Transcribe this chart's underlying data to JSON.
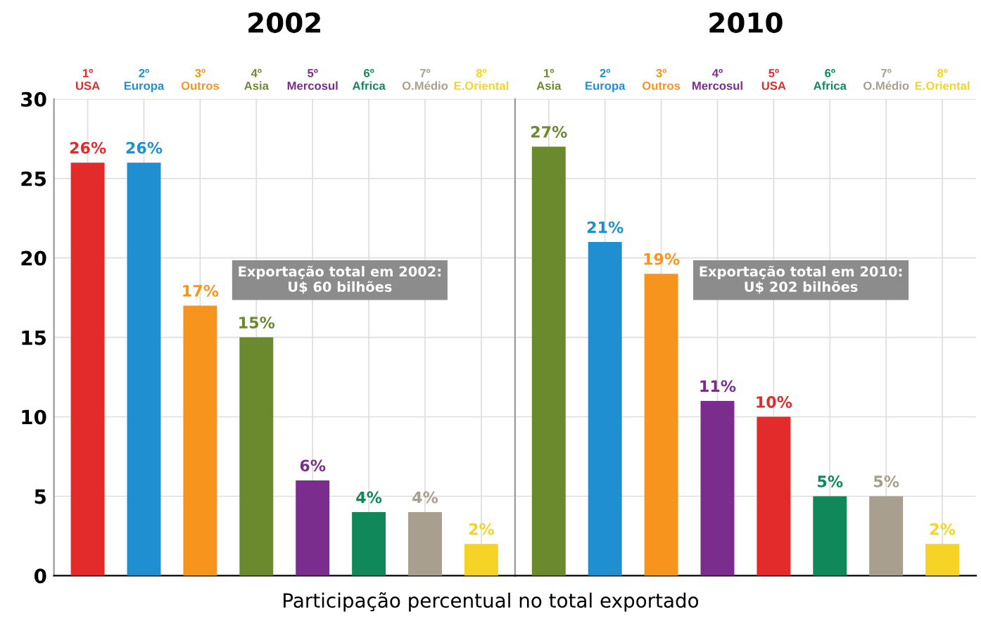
{
  "chart_data": [
    {
      "type": "bar",
      "title": "2002",
      "xlabel": "Participação percentual no total exportado",
      "categories": [
        "1º\nUSA",
        "2º\nEuropa",
        "3º\nOutros",
        "4º\nAsia",
        "5º\nMercosul",
        "6º\nAfrica",
        "7º\nO.Médio",
        "8º\nE.Oriental"
      ],
      "values": [
        26,
        26,
        17,
        15,
        6,
        4,
        4,
        2
      ],
      "value_labels": [
        "26%",
        "26%",
        "17%",
        "15%",
        "6%",
        "4%",
        "4%",
        "2%"
      ],
      "colors": [
        "#e32b2b",
        "#1f8fd1",
        "#f7941d",
        "#6b8a2e",
        "#7b2d8e",
        "#10885a",
        "#a89f8e",
        "#f5d327"
      ],
      "ylim": [
        0,
        30
      ],
      "yticks": [
        0,
        5,
        10,
        15,
        20,
        25,
        30
      ],
      "grid": true,
      "annotations": [
        "Exportação total em 2002:\nU$ 60 bilhões"
      ]
    },
    {
      "type": "bar",
      "title": "2010",
      "categories": [
        "1º\nAsia",
        "2º\nEuropa",
        "3º\nOutros",
        "4º\nMercosul",
        "5º\nUSA",
        "6º\nAfrica",
        "7º\nO.Médio",
        "8º\nE.Oriental"
      ],
      "values": [
        27,
        21,
        19,
        11,
        10,
        5,
        5,
        2
      ],
      "value_labels": [
        "27%",
        "21%",
        "19%",
        "11%",
        "10%",
        "5%",
        "5%",
        "2%"
      ],
      "colors": [
        "#6b8a2e",
        "#1f8fd1",
        "#f7941d",
        "#7b2d8e",
        "#e32b2b",
        "#10885a",
        "#a89f8e",
        "#f5d327"
      ],
      "ylim": [
        0,
        30
      ],
      "yticks": [
        0,
        5,
        10,
        15,
        20,
        25,
        30
      ],
      "grid": true,
      "tick_labels": "x",
      "annotations": [
        "Exportação total em 2010:\nU$ 202 bilhões"
      ]
    }
  ]
}
